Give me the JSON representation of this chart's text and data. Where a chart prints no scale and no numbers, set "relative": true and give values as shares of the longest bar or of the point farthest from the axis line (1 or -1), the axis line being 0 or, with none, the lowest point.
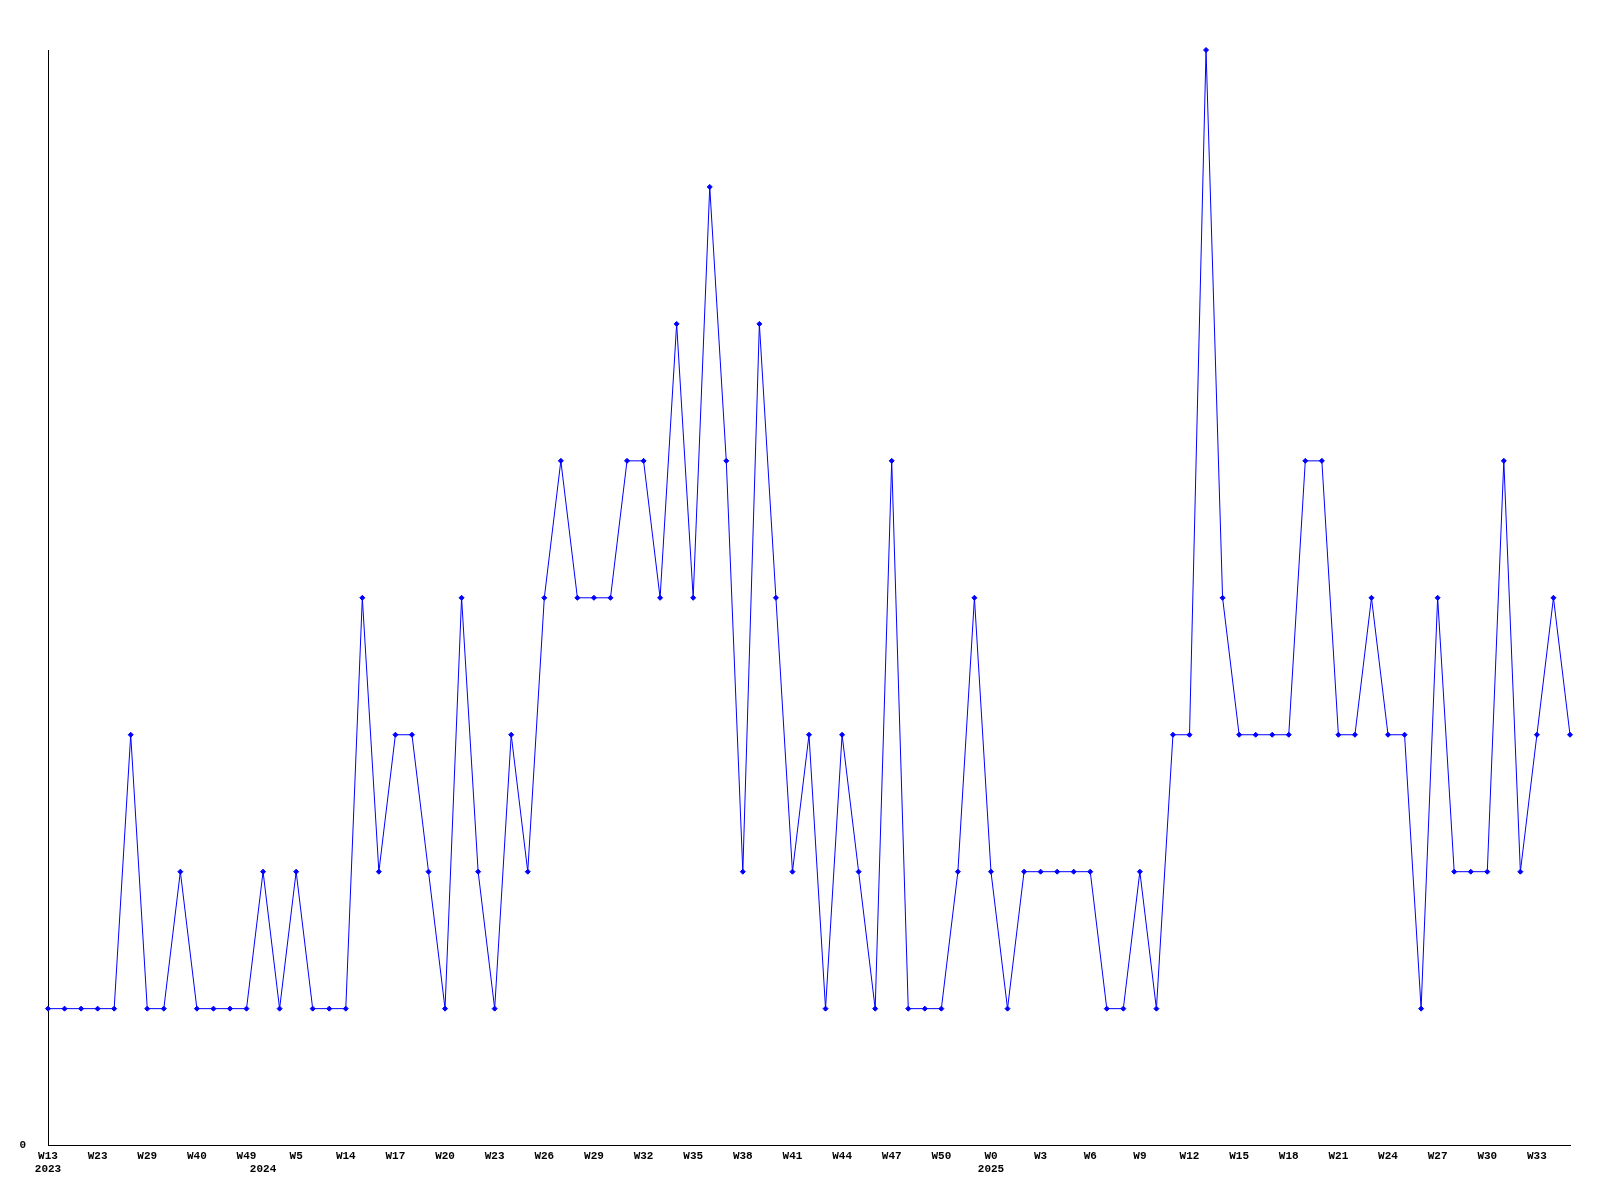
{
  "chart_data": {
    "type": "line",
    "relative": true,
    "marker": "diamond",
    "legend": false,
    "grid": false,
    "annotations": [
      "0"
    ],
    "categories": [
      "W13\n2023",
      null,
      null,
      "W23",
      null,
      null,
      "W29",
      null,
      null,
      "W40",
      null,
      null,
      "W49",
      "\n2024",
      null,
      "W5",
      null,
      null,
      "W14",
      null,
      null,
      "W17",
      null,
      null,
      "W20",
      null,
      null,
      "W23",
      null,
      null,
      "W26",
      null,
      null,
      "W29",
      null,
      null,
      "W32",
      null,
      null,
      "W35",
      null,
      null,
      "W38",
      null,
      null,
      "W41",
      null,
      null,
      "W44",
      null,
      null,
      "W47",
      null,
      null,
      "W50",
      null,
      null,
      "W0\n2025",
      null,
      null,
      "W3",
      null,
      null,
      "W6",
      null,
      null,
      "W9",
      null,
      null,
      "W12",
      null,
      null,
      "W15",
      null,
      null,
      "W18",
      null,
      null,
      "W21",
      null,
      null,
      "W24",
      null,
      null,
      "W27",
      null,
      null,
      "W30",
      null,
      null,
      "W33",
      null,
      null
    ],
    "series": [
      {
        "color": "#0000ff",
        "values": [
          0.125,
          0.125,
          0.125,
          0.125,
          0.125,
          0.375,
          0.125,
          0.125,
          0.25,
          0.125,
          0.125,
          0.125,
          0.125,
          0.25,
          0.125,
          0.25,
          0.125,
          0.125,
          0.125,
          0.5,
          0.25,
          0.375,
          0.375,
          0.25,
          0.125,
          0.5,
          0.25,
          0.125,
          0.375,
          0.25,
          0.5,
          0.625,
          0.5,
          0.5,
          0.5,
          0.625,
          0.625,
          0.5,
          0.75,
          0.5,
          0.875,
          0.625,
          0.25,
          0.75,
          0.5,
          0.25,
          0.375,
          0.125,
          0.375,
          0.25,
          0.125,
          0.625,
          0.125,
          0.125,
          0.125,
          0.25,
          0.5,
          0.25,
          0.125,
          0.25,
          0.25,
          0.25,
          0.25,
          0.25,
          0.125,
          0.125,
          0.25,
          0.125,
          0.375,
          0.375,
          1,
          0.5,
          0.375,
          0.375,
          0.375,
          0.375,
          0.625,
          0.625,
          0.375,
          0.375,
          0.5,
          0.375,
          0.375,
          0.125,
          0.5,
          0.25,
          0.25,
          0.25,
          0.625,
          0.25,
          0.375,
          0.5,
          0.375
        ]
      }
    ]
  }
}
